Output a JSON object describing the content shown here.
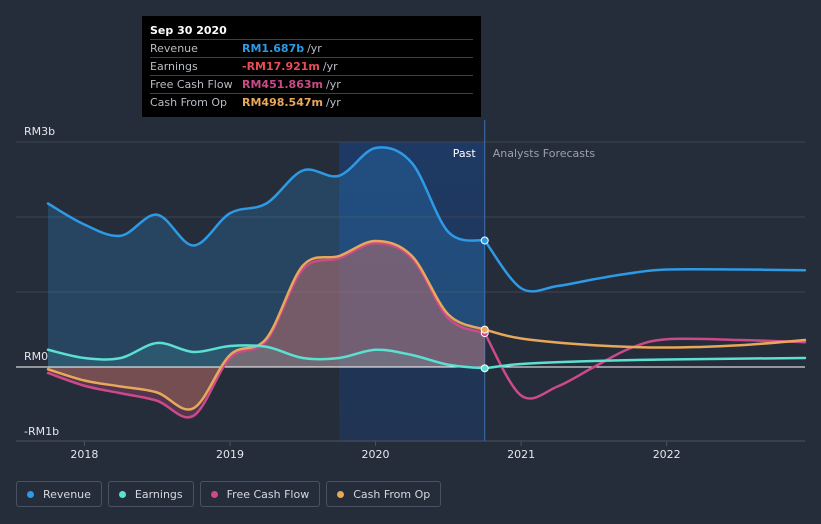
{
  "chart_data": {
    "type": "line",
    "y_unit": "RM billions",
    "ylim": [
      -1,
      3
    ],
    "xlim": [
      2017.75,
      2022.95
    ],
    "y_ticks": [
      {
        "value": 3,
        "label": "RM3b"
      },
      {
        "value": 0,
        "label": "RM0"
      },
      {
        "value": -1,
        "label": "-RM1b"
      }
    ],
    "x_ticks": [
      {
        "value": 2018,
        "label": "2018"
      },
      {
        "value": 2019,
        "label": "2019"
      },
      {
        "value": 2020,
        "label": "2020"
      },
      {
        "value": 2021,
        "label": "2021"
      },
      {
        "value": 2022,
        "label": "2022"
      }
    ],
    "past_label": "Past",
    "forecast_label": "Analysts Forecasts",
    "divider_x": 2020.75,
    "highlight_start": 2019.75,
    "series": [
      {
        "name": "Revenue",
        "color": "#2d9ae6",
        "points": [
          [
            2017.75,
            2.18
          ],
          [
            2018.0,
            1.9
          ],
          [
            2018.25,
            1.75
          ],
          [
            2018.5,
            2.03
          ],
          [
            2018.75,
            1.62
          ],
          [
            2019.0,
            2.05
          ],
          [
            2019.25,
            2.18
          ],
          [
            2019.5,
            2.62
          ],
          [
            2019.75,
            2.55
          ],
          [
            2020.0,
            2.92
          ],
          [
            2020.25,
            2.72
          ],
          [
            2020.5,
            1.8
          ],
          [
            2020.75,
            1.687
          ]
        ],
        "forecast": [
          [
            2020.75,
            1.687
          ],
          [
            2021.0,
            1.05
          ],
          [
            2021.25,
            1.08
          ],
          [
            2021.5,
            1.17
          ],
          [
            2021.75,
            1.25
          ],
          [
            2022.0,
            1.3
          ],
          [
            2022.5,
            1.3
          ],
          [
            2022.95,
            1.29
          ]
        ]
      },
      {
        "name": "Earnings",
        "color": "#5ce0d2",
        "points": [
          [
            2017.75,
            0.23
          ],
          [
            2018.0,
            0.12
          ],
          [
            2018.25,
            0.12
          ],
          [
            2018.5,
            0.32
          ],
          [
            2018.75,
            0.2
          ],
          [
            2019.0,
            0.28
          ],
          [
            2019.25,
            0.27
          ],
          [
            2019.5,
            0.12
          ],
          [
            2019.75,
            0.12
          ],
          [
            2020.0,
            0.23
          ],
          [
            2020.25,
            0.16
          ],
          [
            2020.5,
            0.03
          ],
          [
            2020.75,
            -0.018
          ]
        ],
        "forecast": [
          [
            2020.75,
            -0.018
          ],
          [
            2021.0,
            0.04
          ],
          [
            2021.5,
            0.08
          ],
          [
            2022.0,
            0.1
          ],
          [
            2022.95,
            0.12
          ]
        ]
      },
      {
        "name": "Free Cash Flow",
        "color": "#cc4a8a",
        "points": [
          [
            2017.75,
            -0.08
          ],
          [
            2018.0,
            -0.25
          ],
          [
            2018.25,
            -0.35
          ],
          [
            2018.5,
            -0.45
          ],
          [
            2018.75,
            -0.65
          ],
          [
            2019.0,
            0.12
          ],
          [
            2019.25,
            0.35
          ],
          [
            2019.5,
            1.3
          ],
          [
            2019.75,
            1.45
          ],
          [
            2020.0,
            1.65
          ],
          [
            2020.25,
            1.45
          ],
          [
            2020.5,
            0.65
          ],
          [
            2020.75,
            0.452
          ]
        ],
        "forecast": [
          [
            2020.75,
            0.452
          ],
          [
            2021.0,
            -0.38
          ],
          [
            2021.25,
            -0.26
          ],
          [
            2021.5,
            0.0
          ],
          [
            2021.75,
            0.25
          ],
          [
            2022.0,
            0.37
          ],
          [
            2022.5,
            0.36
          ],
          [
            2022.95,
            0.33
          ]
        ]
      },
      {
        "name": "Cash From Op",
        "color": "#e8a85a",
        "points": [
          [
            2017.75,
            -0.03
          ],
          [
            2018.0,
            -0.18
          ],
          [
            2018.25,
            -0.26
          ],
          [
            2018.5,
            -0.34
          ],
          [
            2018.75,
            -0.55
          ],
          [
            2019.0,
            0.16
          ],
          [
            2019.25,
            0.38
          ],
          [
            2019.5,
            1.35
          ],
          [
            2019.75,
            1.48
          ],
          [
            2020.0,
            1.68
          ],
          [
            2020.25,
            1.48
          ],
          [
            2020.5,
            0.7
          ],
          [
            2020.75,
            0.499
          ]
        ],
        "forecast": [
          [
            2020.75,
            0.499
          ],
          [
            2021.0,
            0.38
          ],
          [
            2021.5,
            0.29
          ],
          [
            2022.0,
            0.26
          ],
          [
            2022.5,
            0.29
          ],
          [
            2022.95,
            0.36
          ]
        ]
      }
    ]
  },
  "tooltip": {
    "date": "Sep 30 2020",
    "rows": [
      {
        "label": "Revenue",
        "value": "RM1.687b",
        "unit": "/yr",
        "color": "#2d9ae6"
      },
      {
        "label": "Earnings",
        "value": "-RM17.921m",
        "unit": "/yr",
        "color": "#e84c55"
      },
      {
        "label": "Free Cash Flow",
        "value": "RM451.863m",
        "unit": "/yr",
        "color": "#cc4a8a"
      },
      {
        "label": "Cash From Op",
        "value": "RM498.547m",
        "unit": "/yr",
        "color": "#e8a85a"
      }
    ]
  },
  "legend": [
    {
      "label": "Revenue",
      "color": "#2d9ae6"
    },
    {
      "label": "Earnings",
      "color": "#5ce0d2"
    },
    {
      "label": "Free Cash Flow",
      "color": "#cc4a8a"
    },
    {
      "label": "Cash From Op",
      "color": "#e8a85a"
    }
  ]
}
